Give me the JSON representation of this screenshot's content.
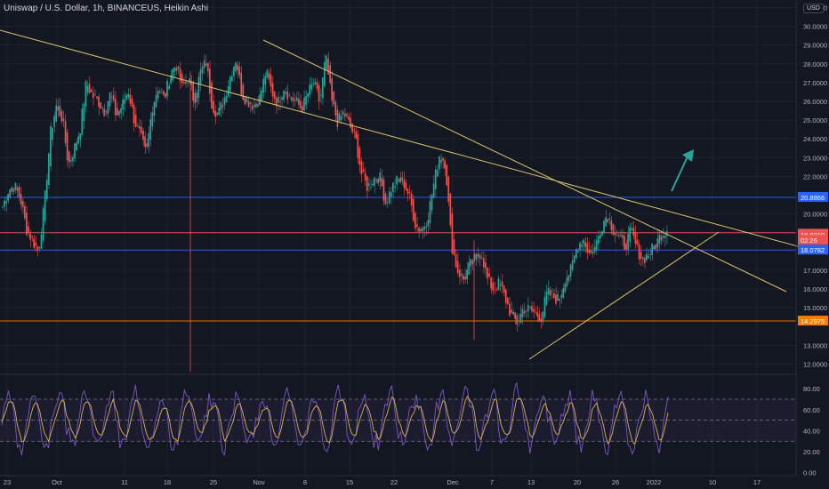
{
  "header": {
    "symbol_title": "Uniswap / U.S. Dollar, 1h, BINANCEUS, Heikin Ashi",
    "currency": "USD"
  },
  "colors": {
    "background": "#131722",
    "grid": "#1e222d",
    "up_candle": "#26a69a",
    "down_candle": "#ef5350",
    "trendline": "#d8c36b",
    "hline_blue": "#2962ff",
    "hline_red": "#ef5350",
    "hline_orange": "#f57c00",
    "arrow": "#26a69a",
    "rsi_k": "#7e57c2",
    "rsi_d": "#d8b34a"
  },
  "chart_data": {
    "type": "candlestick",
    "x_ticks": [
      "23",
      "Oct",
      "11",
      "18",
      "25",
      "Nov",
      "8",
      "15",
      "22",
      "Dec",
      "7",
      "13",
      "20",
      "26",
      "2022",
      "10",
      "17"
    ],
    "y_ticks": [
      "12.0000",
      "13.0000",
      "15.0000",
      "16.0000",
      "17.0000",
      "19.0000",
      "20.0000",
      "22.0000",
      "23.0000",
      "24.0000",
      "25.0000",
      "26.0000",
      "27.0000",
      "28.0000",
      "29.0000",
      "30.0000",
      "31.0000"
    ],
    "ylim": [
      11.6,
      31.4
    ],
    "price_labels": [
      {
        "value": 20.8866,
        "text": "20.8866",
        "color": "#2962ff"
      },
      {
        "value": 18.9251,
        "text": "18.9251",
        "color": "#ef5350"
      },
      {
        "value": 18.891,
        "text": "18.8910",
        "color": "#ef5350"
      },
      {
        "value": 18.6,
        "text": "02:26",
        "color": "#ef5350"
      },
      {
        "value": 18.0782,
        "text": "18.0782",
        "color": "#2962ff"
      },
      {
        "value": 14.2975,
        "text": "14.2975",
        "color": "#f57c00"
      }
    ],
    "horizontal_lines": [
      {
        "value": 20.8866,
        "color": "#2962ff"
      },
      {
        "value": 19.0,
        "color": "#ef5350"
      },
      {
        "value": 18.0782,
        "color": "#2962ff"
      },
      {
        "value": 14.2975,
        "color": "#f57c00"
      }
    ],
    "closes": [
      20.4,
      21.3,
      21.5,
      20.8,
      19.2,
      18.6,
      18.0,
      20.5,
      24.3,
      25.8,
      25.1,
      22.6,
      23.5,
      24.6,
      27.0,
      26.3,
      26.0,
      25.5,
      26.4,
      25.2,
      25.8,
      26.6,
      25.0,
      24.2,
      23.1,
      25.7,
      26.8,
      26.1,
      27.4,
      28.0,
      26.7,
      27.3,
      26.0,
      27.5,
      28.1,
      25.8,
      25.3,
      26.1,
      27.3,
      28.3,
      26.4,
      26.0,
      25.8,
      26.2,
      27.6,
      26.5,
      25.9,
      26.8,
      26.2,
      26.0,
      25.6,
      26.4,
      27.0,
      25.9,
      28.4,
      26.0,
      24.9,
      25.4,
      24.7,
      24.0,
      22.1,
      21.4,
      21.9,
      22.0,
      20.6,
      21.4,
      21.8,
      21.7,
      20.9,
      19.4,
      19.1,
      19.8,
      21.5,
      23.2,
      22.7,
      18.4,
      17.0,
      16.5,
      17.2,
      17.6,
      18.0,
      16.5,
      16.0,
      16.3,
      15.5,
      14.6,
      14.2,
      15.0,
      14.9,
      14.7,
      14.5,
      15.8,
      15.6,
      15.4,
      16.6,
      17.0,
      18.3,
      18.7,
      17.9,
      18.2,
      19.3,
      20.0,
      19.2,
      18.7,
      18.3,
      19.1,
      18.1,
      17.6,
      17.9,
      18.3,
      18.9,
      19.2
    ],
    "rsi": {
      "levels": [
        70,
        50,
        30
      ],
      "ylim": [
        -2,
        92
      ],
      "y_ticks": [
        "0.00",
        "20.00",
        "40.00",
        "60.00",
        "80.00"
      ]
    }
  }
}
